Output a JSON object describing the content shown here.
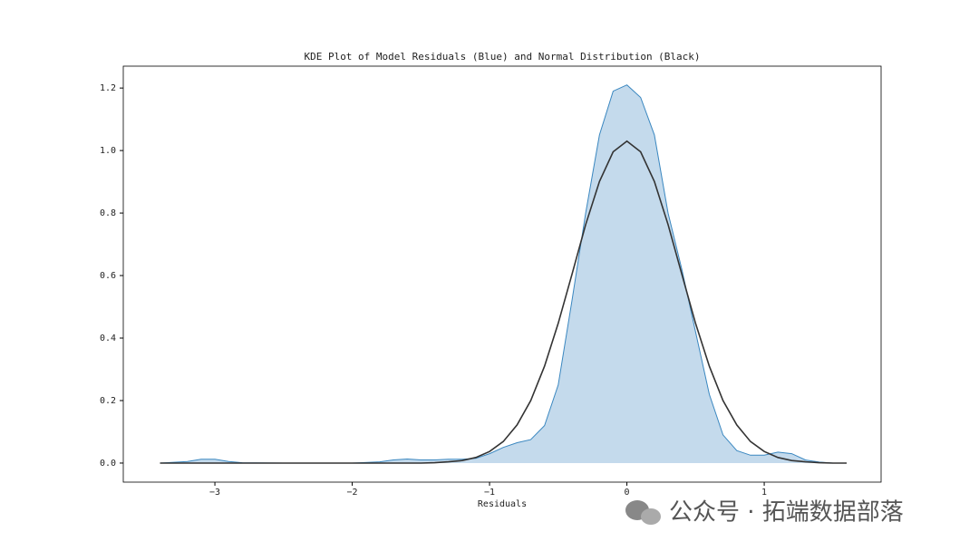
{
  "chart_data": {
    "type": "line",
    "title": "KDE Plot of Model Residuals (Blue) and Normal Distribution (Black)",
    "x_label": "Residuals",
    "x": [
      -3.4,
      -3.2,
      -3.1,
      -3.0,
      -2.9,
      -2.8,
      -2.5,
      -2.0,
      -1.8,
      -1.7,
      -1.6,
      -1.5,
      -1.4,
      -1.3,
      -1.2,
      -1.1,
      -1.0,
      -0.9,
      -0.8,
      -0.7,
      -0.6,
      -0.5,
      -0.4,
      -0.3,
      -0.2,
      -0.1,
      0,
      0.1,
      0.2,
      0.3,
      0.4,
      0.5,
      0.6,
      0.7,
      0.8,
      0.9,
      1.0,
      1.1,
      1.2,
      1.3,
      1.4,
      1.5,
      1.6
    ],
    "series": [
      {
        "color": "#3a87c0",
        "fill": "#c4daec",
        "values": [
          0,
          0.005,
          0.012,
          0.012,
          0.005,
          0.001,
          0,
          0,
          0.004,
          0.01,
          0.013,
          0.01,
          0.01,
          0.012,
          0.012,
          0.015,
          0.03,
          0.05,
          0.065,
          0.075,
          0.12,
          0.25,
          0.52,
          0.8,
          1.05,
          1.19,
          1.21,
          1.17,
          1.05,
          0.8,
          0.62,
          0.42,
          0.22,
          0.09,
          0.04,
          0.025,
          0.025,
          0.035,
          0.03,
          0.01,
          0.003,
          0,
          0
        ]
      },
      {
        "color": "#333333",
        "values": [
          0,
          0,
          0,
          0,
          0,
          0,
          0,
          0,
          0,
          0,
          0,
          0,
          0.001,
          0.004,
          0.008,
          0.018,
          0.037,
          0.069,
          0.122,
          0.2,
          0.31,
          0.447,
          0.604,
          0.763,
          0.901,
          0.996,
          1.03,
          0.996,
          0.901,
          0.763,
          0.604,
          0.447,
          0.31,
          0.2,
          0.122,
          0.069,
          0.037,
          0.018,
          0.008,
          0.004,
          0.001,
          0,
          0
        ]
      }
    ],
    "xlim": [
      -3.667,
      1.851
    ],
    "ylim": [
      -0.061,
      1.27
    ],
    "xticks": [
      {
        "value": -3,
        "label": "−3"
      },
      {
        "value": -2,
        "label": "−2"
      },
      {
        "value": -1,
        "label": "−1"
      },
      0,
      1
    ],
    "yticks": [
      {
        "value": 0,
        "label": "0.0"
      },
      0.2,
      0.4,
      0.6,
      0.8,
      {
        "value": 1,
        "label": "1.0"
      },
      1.2
    ]
  },
  "watermark": "公众号 · 拓端数据部落"
}
